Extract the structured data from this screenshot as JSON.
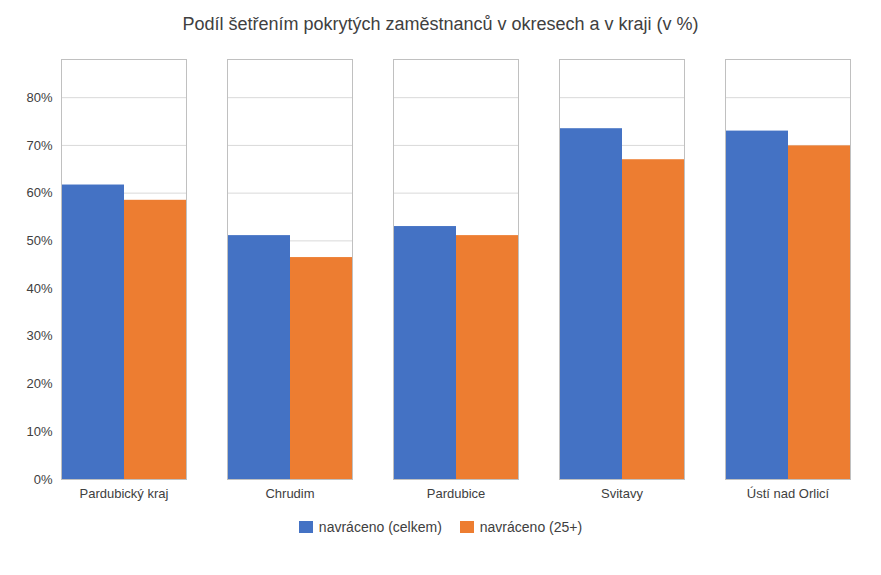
{
  "chart_data": {
    "type": "bar",
    "title": "Podíl šetřením pokrytých zaměstnanců v okresech a v kraji (v %)",
    "categories": [
      "Pardubický kraj",
      "Chrudim",
      "Pardubice",
      "Svitavy",
      "Ústí nad Orlicí"
    ],
    "series": [
      {
        "name": "navráceno (celkem)",
        "color": "#4472C4",
        "values": [
          0.617,
          0.511,
          0.53,
          0.735,
          0.73
        ]
      },
      {
        "name": "navráceno (25+)",
        "color": "#ED7D31",
        "values": [
          0.585,
          0.465,
          0.511,
          0.67,
          0.699
        ]
      }
    ],
    "ylim": [
      0,
      0.88
    ],
    "yticks": [
      {
        "value": 0.0,
        "label": "0%"
      },
      {
        "value": 0.1,
        "label": "10%"
      },
      {
        "value": 0.2,
        "label": "20%"
      },
      {
        "value": 0.3,
        "label": "30%"
      },
      {
        "value": 0.4,
        "label": "40%"
      },
      {
        "value": 0.5,
        "label": "50%"
      },
      {
        "value": 0.6,
        "label": "60%"
      },
      {
        "value": 0.7,
        "label": "70%"
      },
      {
        "value": 0.8,
        "label": "80%"
      }
    ],
    "grid": true,
    "legend": "bottom"
  }
}
